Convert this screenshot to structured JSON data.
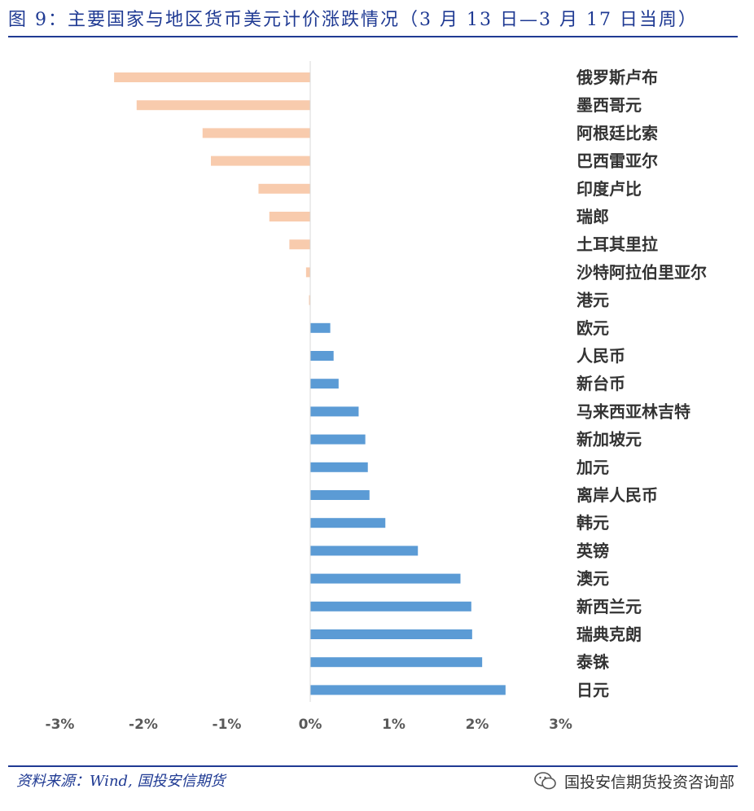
{
  "title": "图 9：主要国家与地区货币美元计价涨跌情况（3 月 13 日—3 月 17 日当周）",
  "source": "资料来源：Wind, 国投安信期货",
  "watermark": "国投安信期货投资咨询部",
  "colors": {
    "negative": "#f8cbad",
    "positive": "#5b9bd5",
    "title": "#1f3a93"
  },
  "chart_data": {
    "type": "bar",
    "orientation": "horizontal",
    "categories": [
      "俄罗斯卢布",
      "墨西哥元",
      "阿根廷比索",
      "巴西雷亚尔",
      "印度卢比",
      "瑞郎",
      "土耳其里拉",
      "沙特阿拉伯里亚尔",
      "港元",
      "欧元",
      "人民币",
      "新台币",
      "马来西亚林吉特",
      "新加坡元",
      "加元",
      "离岸人民币",
      "韩元",
      "英镑",
      "澳元",
      "新西兰元",
      "瑞典克朗",
      "泰铢",
      "日元"
    ],
    "values": [
      -2.35,
      -2.08,
      -1.29,
      -1.19,
      -0.62,
      -0.49,
      -0.25,
      -0.05,
      -0.01,
      0.24,
      0.28,
      0.34,
      0.58,
      0.66,
      0.69,
      0.71,
      0.9,
      1.29,
      1.8,
      1.93,
      1.94,
      2.06,
      2.34
    ],
    "xlim": [
      -3,
      3
    ],
    "xticks": [
      "-3%",
      "-2%",
      "-1%",
      "0%",
      "1%",
      "2%",
      "3%"
    ],
    "grid": false,
    "legend": "none"
  }
}
